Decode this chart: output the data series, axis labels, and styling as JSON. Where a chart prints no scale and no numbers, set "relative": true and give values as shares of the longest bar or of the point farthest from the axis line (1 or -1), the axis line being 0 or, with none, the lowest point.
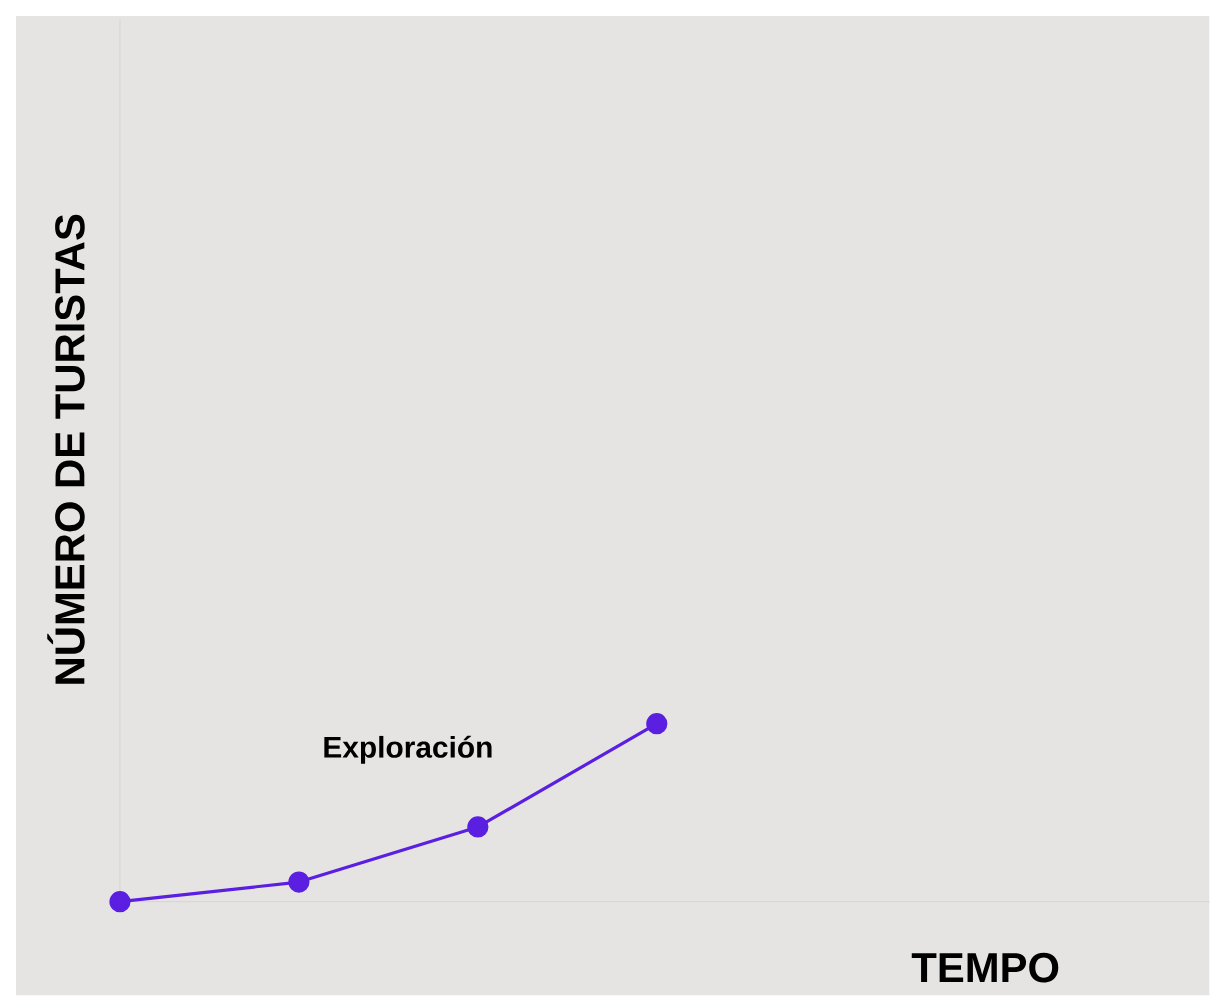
{
  "chart_data": {
    "type": "line",
    "relative": true,
    "xlabel": "TEMPO",
    "ylabel": "NÚMERO DE TURISTAS",
    "annotations": [
      "Exploración"
    ],
    "categories": [
      null,
      null,
      null,
      null
    ],
    "marker": "circle",
    "series": [
      {
        "color": "#5a1fe0",
        "values": [
          0,
          0.11,
          0.42,
          1
        ]
      }
    ]
  }
}
